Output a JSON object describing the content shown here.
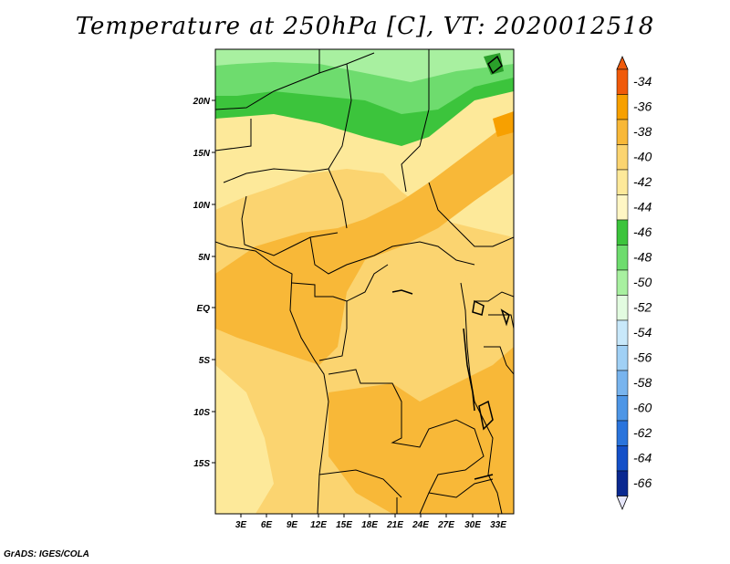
{
  "title": "Temperature at 250hPa [C], VT: 2020012518",
  "credit": "GrADS: IGES/COLA",
  "map": {
    "lat_labels": [
      "20N",
      "15N",
      "10N",
      "5N",
      "EQ",
      "5S",
      "10S",
      "15S"
    ],
    "lon_labels": [
      "3E",
      "6E",
      "9E",
      "12E",
      "15E",
      "18E",
      "21E",
      "24E",
      "27E",
      "30E",
      "33E"
    ]
  },
  "colorbar": {
    "labels": [
      "-34",
      "-36",
      "-38",
      "-40",
      "-42",
      "-44",
      "-46",
      "-48",
      "-50",
      "-52",
      "-54",
      "-56",
      "-58",
      "-60",
      "-62",
      "-64",
      "-66"
    ],
    "colors": [
      "#f05a0a",
      "#f7a000",
      "#f8b838",
      "#fbd470",
      "#fde99a",
      "#fff6c4",
      "#3cc43c",
      "#6edc6e",
      "#a8f0a0",
      "#e2fbe0",
      "#c8e8fa",
      "#a0d0f5",
      "#78b4ee",
      "#4e96e6",
      "#2a74dc",
      "#1450c8",
      "#0a2890",
      "#0c1460"
    ]
  },
  "icons": {
    "triangles": "colorbar-end-triangle"
  }
}
